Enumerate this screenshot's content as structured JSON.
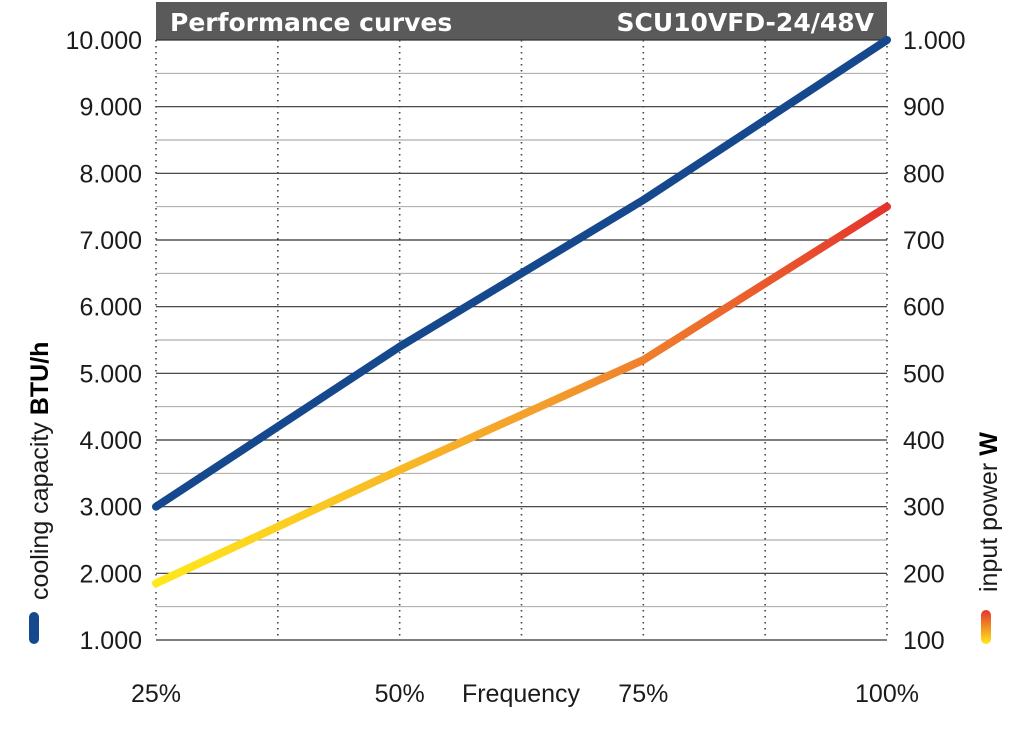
{
  "header": {
    "title": "Performance curves",
    "model": "SCU10VFD-24/48V"
  },
  "colors": {
    "header_bg": "#5a5a5a",
    "cooling": "#16488e",
    "power_start": "#ffe81a",
    "power_mid": "#f39a2c",
    "power_end": "#e4342c",
    "grid": "#333333"
  },
  "chart_data": {
    "type": "line",
    "title": "Performance curves",
    "subtitle": "SCU10VFD-24/48V",
    "xlabel": "Frequency",
    "x": [
      25,
      50,
      75,
      100
    ],
    "x_tick_labels": [
      "25%",
      "50%",
      "75%",
      "100%"
    ],
    "xlim": [
      25,
      100
    ],
    "left_axis": {
      "label_regular": "cooling capacity ",
      "label_bold": "BTU/h",
      "ylim": [
        1000,
        10000
      ],
      "ticks": [
        1000,
        2000,
        3000,
        4000,
        5000,
        6000,
        7000,
        8000,
        9000,
        10000
      ],
      "tick_labels": [
        "1.000",
        "2.000",
        "3.000",
        "4.000",
        "5.000",
        "6.000",
        "7.000",
        "8.000",
        "9.000",
        "10.000"
      ]
    },
    "right_axis": {
      "label_regular": "input power ",
      "label_bold": "W",
      "ylim": [
        100,
        1000
      ],
      "ticks": [
        100,
        200,
        300,
        400,
        500,
        600,
        700,
        800,
        900,
        1000
      ],
      "tick_labels": [
        "100",
        "200",
        "300",
        "400",
        "500",
        "600",
        "700",
        "800",
        "900",
        "1.000"
      ]
    },
    "series": [
      {
        "axis": "left",
        "x": [
          25,
          50,
          75,
          100
        ],
        "values": [
          3000,
          5400,
          7600,
          10000
        ]
      },
      {
        "axis": "right",
        "x": [
          25,
          50,
          75,
          100
        ],
        "values": [
          185,
          355,
          520,
          750
        ]
      }
    ],
    "grid": true
  }
}
